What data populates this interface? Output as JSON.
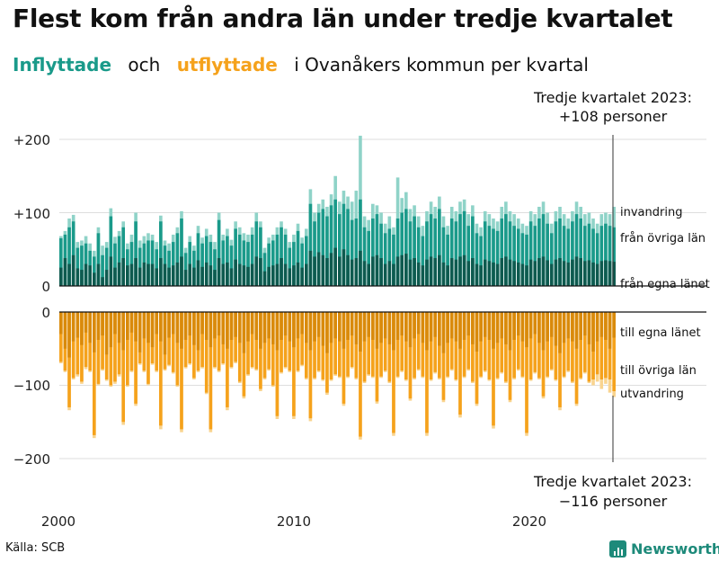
{
  "title": "Flest kom från andra län under tredje kvartalet",
  "subtitle": {
    "in_label": "Inflyttade",
    "and": "och",
    "out_label": "utflyttade",
    "rest": "i Ovanåkers  kommun  per  kvartal"
  },
  "colors": {
    "inflow_total": "#8fd3c8",
    "inflow_other": "#1a9a8a",
    "inflow_own": "#0e5a4f",
    "outflow_own": "#d98a0b",
    "outflow_other": "#f5a21c",
    "outflow_total": "#f9d48f"
  },
  "callouts": {
    "top_line1": "Tredje kvartalet 2023:",
    "top_line2": "+108 personer",
    "bottom_line1": "Tredje kvartalet 2023:",
    "bottom_line2": "−116 personer"
  },
  "source": "Källa: SCB",
  "brand": "Newsworthy",
  "chart_data": {
    "type": "bar",
    "title": "Flest kom från andra län under tredje kvartalet",
    "ylim": [
      -200,
      200
    ],
    "y_ticks": [
      "+200",
      "+100",
      "0",
      "0",
      "−100",
      "−200"
    ],
    "x_ticks": [
      "2000",
      "2010",
      "2020"
    ],
    "categories_start": "2000 Q1",
    "categories_end": "2023 Q3",
    "series_labels": {
      "inflow_total": "invandring",
      "inflow_other": "från övriga län",
      "inflow_own": "från egna länet",
      "outflow_own": "till egna länet",
      "outflow_other": "till övriga län",
      "outflow_total": "utvandring"
    },
    "inflow_own": [
      25,
      38,
      30,
      42,
      24,
      22,
      30,
      28,
      18,
      30,
      12,
      22,
      40,
      25,
      32,
      38,
      28,
      30,
      38,
      25,
      32,
      30,
      30,
      24,
      38,
      30,
      25,
      28,
      32,
      40,
      22,
      30,
      25,
      35,
      26,
      32,
      28,
      22,
      38,
      30,
      32,
      24,
      36,
      30,
      28,
      26,
      30,
      40,
      38,
      20,
      26,
      28,
      30,
      38,
      30,
      24,
      28,
      32,
      25,
      30,
      48,
      40,
      46,
      42,
      38,
      45,
      52,
      40,
      50,
      42,
      36,
      38,
      48,
      34,
      30,
      40,
      42,
      38,
      30,
      34,
      30,
      40,
      42,
      44,
      36,
      38,
      32,
      28,
      36,
      40,
      38,
      42,
      32,
      28,
      38,
      36,
      40,
      42,
      34,
      38,
      30,
      28,
      36,
      34,
      32,
      30,
      38,
      40,
      36,
      34,
      32,
      30,
      28,
      36,
      34,
      38,
      40,
      35,
      30,
      36,
      38,
      34,
      32,
      36,
      40,
      38,
      34,
      35,
      32,
      30,
      34,
      35,
      34,
      33
    ],
    "inflow_other": [
      65,
      70,
      80,
      88,
      52,
      55,
      58,
      48,
      40,
      72,
      42,
      52,
      95,
      58,
      68,
      80,
      50,
      60,
      88,
      52,
      58,
      62,
      62,
      50,
      88,
      55,
      48,
      60,
      72,
      92,
      45,
      60,
      48,
      72,
      58,
      68,
      60,
      50,
      90,
      62,
      68,
      55,
      78,
      70,
      62,
      60,
      70,
      88,
      80,
      45,
      58,
      62,
      70,
      80,
      70,
      52,
      60,
      75,
      58,
      68,
      112,
      88,
      100,
      105,
      95,
      110,
      118,
      98,
      112,
      105,
      90,
      92,
      118,
      80,
      75,
      92,
      98,
      85,
      72,
      78,
      70,
      92,
      100,
      105,
      88,
      95,
      80,
      68,
      88,
      98,
      92,
      105,
      80,
      70,
      92,
      88,
      98,
      102,
      82,
      95,
      72,
      68,
      88,
      82,
      78,
      75,
      92,
      98,
      88,
      82,
      78,
      72,
      70,
      88,
      82,
      92,
      98,
      85,
      72,
      88,
      92,
      82,
      78,
      88,
      98,
      92,
      82,
      85,
      78,
      72,
      82,
      85,
      82,
      80
    ],
    "inflow_total": [
      68,
      75,
      92,
      97,
      60,
      62,
      68,
      58,
      48,
      80,
      55,
      60,
      106,
      67,
      75,
      88,
      58,
      70,
      100,
      62,
      68,
      72,
      70,
      60,
      96,
      62,
      58,
      70,
      80,
      102,
      52,
      68,
      55,
      82,
      66,
      78,
      70,
      60,
      100,
      70,
      78,
      63,
      88,
      80,
      72,
      70,
      80,
      100,
      88,
      52,
      66,
      70,
      80,
      88,
      78,
      60,
      70,
      85,
      66,
      78,
      132,
      100,
      112,
      118,
      108,
      125,
      150,
      115,
      130,
      122,
      115,
      130,
      205,
      95,
      90,
      112,
      110,
      100,
      85,
      95,
      80,
      148,
      120,
      128,
      105,
      110,
      95,
      82,
      102,
      115,
      108,
      122,
      95,
      82,
      108,
      102,
      115,
      118,
      98,
      110,
      85,
      80,
      102,
      98,
      92,
      88,
      108,
      115,
      102,
      98,
      92,
      85,
      82,
      102,
      98,
      108,
      115,
      100,
      85,
      102,
      108,
      98,
      92,
      102,
      115,
      108,
      98,
      100,
      92,
      85,
      98,
      100,
      98,
      108
    ],
    "outflow_own": [
      30,
      50,
      62,
      40,
      35,
      45,
      28,
      42,
      55,
      38,
      32,
      58,
      48,
      30,
      42,
      52,
      38,
      28,
      40,
      55,
      36,
      42,
      48,
      30,
      40,
      58,
      35,
      30,
      42,
      50,
      38,
      32,
      45,
      52,
      30,
      38,
      48,
      36,
      32,
      44,
      50,
      38,
      34,
      42,
      56,
      40,
      30,
      38,
      50,
      42,
      36,
      44,
      52,
      38,
      32,
      40,
      48,
      36,
      30,
      42,
      52,
      40,
      34,
      46,
      56,
      42,
      36,
      40,
      50,
      38,
      32,
      44,
      54,
      40,
      34,
      38,
      50,
      42,
      36,
      44,
      52,
      38,
      32,
      40,
      48,
      36,
      30,
      42,
      52,
      40,
      34,
      46,
      56,
      42,
      36,
      40,
      50,
      38,
      32,
      44,
      54,
      40,
      34,
      38,
      50,
      42,
      36,
      44,
      52,
      38,
      32,
      40,
      48,
      36,
      30,
      42,
      52,
      40,
      34,
      46,
      56,
      42,
      36,
      40,
      50,
      38,
      32,
      44,
      54,
      40,
      34,
      38,
      50,
      35
    ],
    "outflow_other": [
      68,
      80,
      130,
      90,
      85,
      95,
      75,
      80,
      168,
      98,
      78,
      92,
      100,
      95,
      85,
      150,
      100,
      80,
      125,
      70,
      80,
      98,
      70,
      80,
      155,
      78,
      72,
      82,
      100,
      160,
      75,
      70,
      90,
      80,
      75,
      110,
      160,
      75,
      80,
      70,
      130,
      75,
      68,
      95,
      115,
      85,
      75,
      78,
      105,
      90,
      78,
      100,
      142,
      82,
      75,
      80,
      142,
      80,
      72,
      90,
      145,
      90,
      80,
      92,
      110,
      92,
      85,
      88,
      125,
      88,
      75,
      90,
      170,
      95,
      85,
      88,
      122,
      88,
      80,
      95,
      165,
      88,
      80,
      92,
      118,
      90,
      78,
      88,
      165,
      92,
      82,
      90,
      120,
      88,
      78,
      92,
      140,
      88,
      78,
      95,
      125,
      88,
      80,
      92,
      155,
      90,
      82,
      95,
      120,
      90,
      78,
      88,
      165,
      92,
      82,
      90,
      115,
      88,
      78,
      92,
      130,
      88,
      80,
      95,
      125,
      90,
      82,
      95,
      92,
      85,
      92,
      90,
      92,
      108
    ],
    "outflow_total": [
      70,
      82,
      134,
      92,
      88,
      98,
      78,
      82,
      172,
      100,
      80,
      94,
      102,
      98,
      88,
      154,
      102,
      82,
      128,
      72,
      82,
      100,
      72,
      82,
      160,
      80,
      74,
      84,
      102,
      164,
      77,
      72,
      92,
      82,
      77,
      112,
      164,
      77,
      82,
      72,
      134,
      77,
      70,
      97,
      118,
      87,
      77,
      80,
      108,
      92,
      80,
      102,
      146,
      84,
      77,
      82,
      146,
      82,
      74,
      92,
      149,
      92,
      82,
      94,
      113,
      94,
      87,
      90,
      128,
      90,
      77,
      92,
      174,
      97,
      87,
      90,
      125,
      90,
      82,
      97,
      169,
      90,
      82,
      94,
      121,
      92,
      80,
      90,
      169,
      94,
      84,
      92,
      123,
      90,
      80,
      94,
      144,
      90,
      80,
      97,
      128,
      90,
      82,
      94,
      159,
      92,
      84,
      97,
      123,
      92,
      80,
      90,
      169,
      94,
      84,
      92,
      118,
      90,
      80,
      94,
      134,
      90,
      82,
      97,
      128,
      92,
      84,
      97,
      100,
      95,
      105,
      98,
      110,
      116
    ]
  }
}
